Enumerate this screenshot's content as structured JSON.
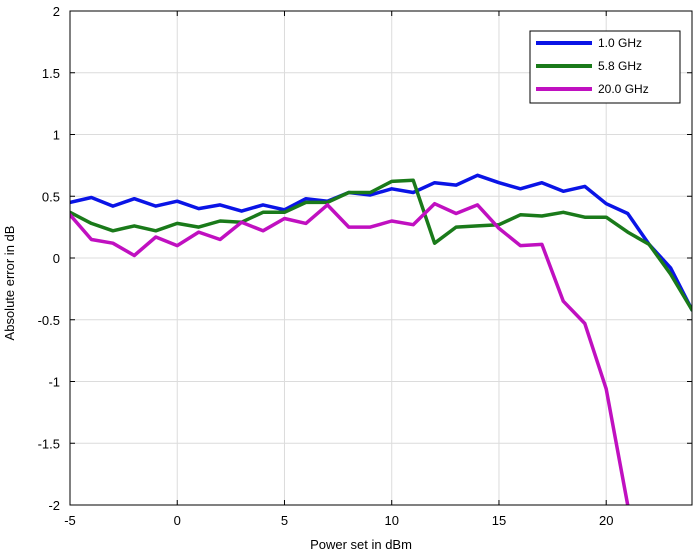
{
  "chart_data": {
    "type": "line",
    "xlabel": "Power set in dBm",
    "ylabel": "Absolute error in dB",
    "xlim": [
      -5,
      24
    ],
    "ylim": [
      -2,
      2
    ],
    "xticks": [
      -5,
      0,
      5,
      10,
      15,
      20
    ],
    "yticks": [
      -2,
      -1.5,
      -1,
      -0.5,
      0,
      0.5,
      1,
      1.5,
      2
    ],
    "xtick_labels": [
      "-5",
      "0",
      "5",
      "10",
      "15",
      "20"
    ],
    "ytick_labels": [
      "-2",
      "-1.5",
      "-1",
      "-0.5",
      "0",
      "0.5",
      "1",
      "1.5",
      "2"
    ],
    "grid": true,
    "legend_position": "top-right",
    "series": [
      {
        "name": "1.0 GHz",
        "color": "#0a14e6",
        "x": [
          -5,
          -4,
          -3,
          -2,
          -1,
          0,
          1,
          2,
          3,
          4,
          5,
          6,
          7,
          8,
          9,
          10,
          11,
          12,
          13,
          14,
          15,
          16,
          17,
          18,
          19,
          20,
          21,
          22,
          23,
          24
        ],
        "y": [
          0.45,
          0.49,
          0.42,
          0.48,
          0.42,
          0.46,
          0.4,
          0.43,
          0.38,
          0.43,
          0.39,
          0.48,
          0.46,
          0.53,
          0.51,
          0.56,
          0.53,
          0.61,
          0.59,
          0.67,
          0.61,
          0.56,
          0.61,
          0.54,
          0.58,
          0.44,
          0.36,
          0.11,
          -0.08,
          -0.42
        ]
      },
      {
        "name": "5.8 GHz",
        "color": "#1a7a1a",
        "x": [
          -5,
          -4,
          -3,
          -2,
          -1,
          0,
          1,
          2,
          3,
          4,
          5,
          6,
          7,
          8,
          9,
          10,
          11,
          12,
          13,
          14,
          15,
          16,
          17,
          18,
          19,
          20,
          21,
          22,
          23,
          24
        ],
        "y": [
          0.37,
          0.28,
          0.22,
          0.26,
          0.22,
          0.28,
          0.25,
          0.3,
          0.29,
          0.37,
          0.37,
          0.45,
          0.45,
          0.53,
          0.53,
          0.62,
          0.63,
          0.12,
          0.25,
          0.26,
          0.27,
          0.35,
          0.34,
          0.37,
          0.33,
          0.33,
          0.21,
          0.11,
          -0.13,
          -0.42
        ]
      },
      {
        "name": "20.0 GHz",
        "color": "#c010c0",
        "x": [
          -5,
          -4,
          -3,
          -2,
          -1,
          0,
          1,
          2,
          3,
          4,
          5,
          6,
          7,
          8,
          9,
          10,
          11,
          12,
          13,
          14,
          15,
          16,
          17,
          18,
          19,
          20,
          21
        ],
        "y": [
          0.35,
          0.15,
          0.12,
          0.02,
          0.17,
          0.1,
          0.21,
          0.15,
          0.29,
          0.22,
          0.32,
          0.28,
          0.43,
          0.25,
          0.25,
          0.3,
          0.27,
          0.44,
          0.36,
          0.43,
          0.24,
          0.1,
          0.11,
          -0.35,
          -0.53,
          -1.06,
          -2.0
        ]
      }
    ]
  }
}
